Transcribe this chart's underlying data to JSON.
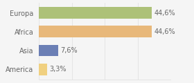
{
  "categories": [
    "Europa",
    "Africa",
    "Asia",
    "America"
  ],
  "values": [
    44.6,
    44.6,
    7.6,
    3.3
  ],
  "labels": [
    "44,6%",
    "44,6%",
    "7,6%",
    "3,3%"
  ],
  "bar_colors": [
    "#adc178",
    "#e8b87a",
    "#6b7fb5",
    "#f0d080"
  ],
  "background_color": "#f5f5f5",
  "xlim": [
    0,
    52
  ],
  "bar_height": 0.62,
  "label_fontsize": 7.0,
  "category_fontsize": 7.0,
  "text_color": "#666666",
  "grid_color": "#dddddd",
  "grid_xticks": [
    0,
    13,
    26,
    39,
    52
  ]
}
